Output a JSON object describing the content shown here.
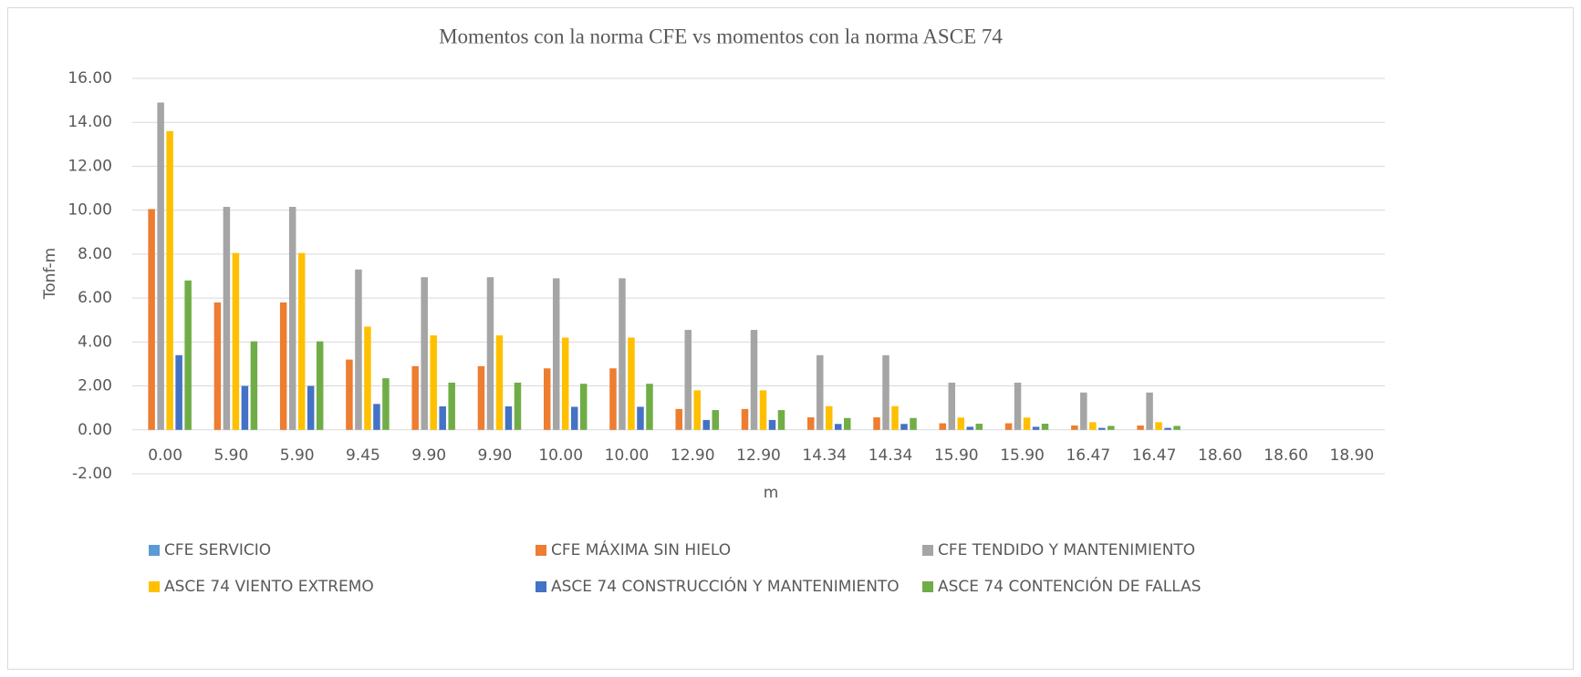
{
  "chart_data": {
    "type": "bar",
    "title": "Momentos con la norma CFE vs momentos con la norma ASCE 74",
    "x_label": "m",
    "y_label": "Tonf-m",
    "categories": [
      "0.00",
      "5.90",
      "5.90",
      "9.45",
      "9.90",
      "9.90",
      "10.00",
      "10.00",
      "12.90",
      "12.90",
      "14.34",
      "14.34",
      "15.90",
      "15.90",
      "16.47",
      "16.47",
      "18.60",
      "18.60",
      "18.90"
    ],
    "series": [
      {
        "name": "CFE SERVICIO",
        "color": "#5B9BD5",
        "values": [
          0,
          0,
          0,
          0,
          0,
          0,
          0,
          0,
          0,
          0,
          0,
          0,
          0,
          0,
          0,
          0,
          0,
          0,
          0
        ]
      },
      {
        "name": "CFE MÁXIMA SIN HIELO",
        "color": "#ED7D31",
        "values": [
          10.05,
          5.8,
          5.8,
          3.2,
          2.9,
          2.9,
          2.8,
          2.8,
          0.95,
          0.95,
          0.57,
          0.57,
          0.3,
          0.3,
          0.2,
          0.2,
          0,
          0,
          0
        ]
      },
      {
        "name": "CFE TENDIDO Y MANTENIMIENTO",
        "color": "#A5A5A5",
        "values": [
          14.9,
          10.15,
          10.15,
          7.3,
          6.95,
          6.95,
          6.9,
          6.9,
          4.55,
          4.55,
          3.4,
          3.4,
          2.15,
          2.15,
          1.7,
          1.7,
          0,
          0,
          0
        ]
      },
      {
        "name": "ASCE 74 VIENTO EXTREMO",
        "color": "#FFC000",
        "values": [
          13.6,
          8.05,
          8.05,
          4.7,
          4.3,
          4.3,
          4.2,
          4.2,
          1.8,
          1.8,
          1.08,
          1.08,
          0.56,
          0.56,
          0.35,
          0.35,
          0,
          0,
          0
        ]
      },
      {
        "name": "ASCE 74 CONSTRUCCIÓN Y MANTENIMIENTO",
        "color": "#4472C4",
        "values": [
          3.4,
          2.0,
          2.0,
          1.18,
          1.07,
          1.07,
          1.05,
          1.05,
          0.45,
          0.45,
          0.27,
          0.27,
          0.14,
          0.14,
          0.09,
          0.09,
          0,
          0,
          0
        ]
      },
      {
        "name": "ASCE 74 CONTENCIÓN DE FALLAS",
        "color": "#70AD47",
        "values": [
          6.8,
          4.03,
          4.03,
          2.35,
          2.15,
          2.15,
          2.1,
          2.1,
          0.9,
          0.9,
          0.54,
          0.54,
          0.28,
          0.28,
          0.18,
          0.18,
          0,
          0,
          0
        ]
      }
    ],
    "ylim": [
      -2,
      16
    ],
    "yticks": [
      {
        "value": -2,
        "label": "-2.00"
      },
      {
        "value": 0,
        "label": "0.00"
      },
      {
        "value": 2,
        "label": "2.00"
      },
      {
        "value": 4,
        "label": "4.00"
      },
      {
        "value": 6,
        "label": "6.00"
      },
      {
        "value": 8,
        "label": "8.00"
      },
      {
        "value": 10,
        "label": "10.00"
      },
      {
        "value": 12,
        "label": "12.00"
      },
      {
        "value": 14,
        "label": "14.00"
      },
      {
        "value": 16,
        "label": "16.00"
      }
    ],
    "grid": true,
    "legend": "bottom"
  }
}
